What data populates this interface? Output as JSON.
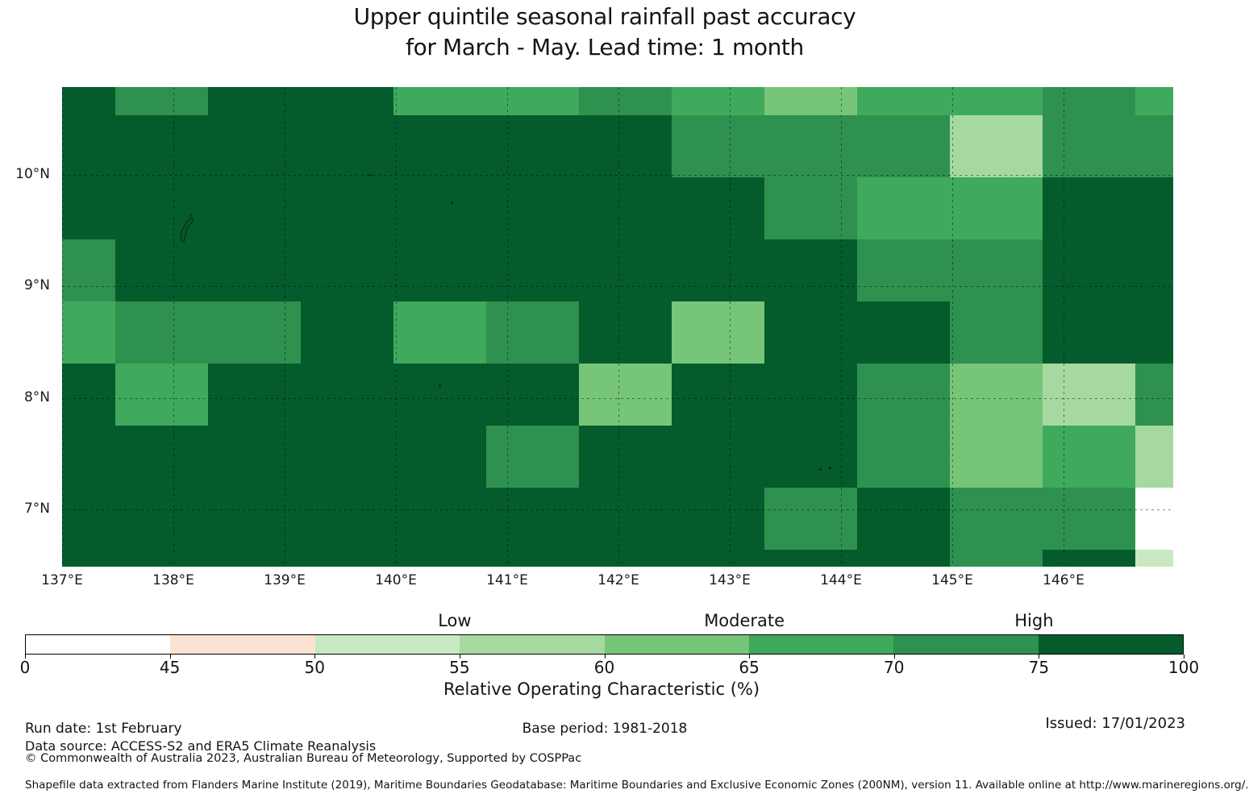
{
  "title": {
    "line1": "Upper quintile seasonal rainfall past accuracy",
    "line2": "for March - May. Lead time: 1 month"
  },
  "chart_data": {
    "type": "heatmap",
    "variable": "Relative Operating Characteristic (%)",
    "season": "March - May",
    "lead_time": "1 month",
    "x_tick_labels": [
      "137°E",
      "138°E",
      "139°E",
      "140°E",
      "141°E",
      "142°E",
      "143°E",
      "144°E",
      "145°E",
      "146°E"
    ],
    "y_tick_labels": [
      "10°N",
      "9°N",
      "8°N",
      "7°N"
    ],
    "lon_ticks": [
      137,
      138,
      139,
      140,
      141,
      142,
      143,
      144,
      145,
      146
    ],
    "lat_ticks": [
      10,
      9,
      8,
      7
    ],
    "lon_range": [
      137.0,
      146.99
    ],
    "lat_range": [
      6.486,
      10.788
    ],
    "grid_on": true,
    "lon_edges": [
      137.0,
      137.478,
      138.312,
      139.145,
      139.978,
      140.812,
      141.645,
      142.478,
      143.312,
      144.145,
      144.978,
      145.812,
      146.645,
      146.99
    ],
    "lat_edges": [
      10.788,
      10.535,
      9.978,
      9.421,
      8.864,
      8.307,
      7.751,
      7.194,
      6.637,
      6.486
    ],
    "bins": [
      {
        "range": "0-45",
        "label": "0 to 45 %",
        "color": "#ffffff"
      },
      {
        "range": "45-50",
        "label": "45 to 50 %",
        "color": "#fbe2d5"
      },
      {
        "range": "50-55",
        "label": "50 to 55 %",
        "color": "#c9e9c2"
      },
      {
        "range": "55-60",
        "label": "55 to 60 %",
        "color": "#a6d99f"
      },
      {
        "range": "60-65",
        "label": "60 to 65 %",
        "color": "#77c578"
      },
      {
        "range": "65-70",
        "label": "65 to 70 %",
        "color": "#3fa95c"
      },
      {
        "range": "70-75",
        "label": "70 to 75 %",
        "color": "#2e9150"
      },
      {
        "range": "75-100",
        "label": "75 to 100 %",
        "color": "#045c2c"
      }
    ],
    "values_bin_index": [
      [
        7,
        6,
        7,
        7,
        5,
        5,
        6,
        5,
        4,
        5,
        5,
        6,
        5
      ],
      [
        7,
        7,
        7,
        7,
        7,
        7,
        7,
        6,
        6,
        6,
        3,
        6,
        6
      ],
      [
        7,
        7,
        7,
        7,
        7,
        7,
        7,
        7,
        6,
        5,
        5,
        7,
        7
      ],
      [
        6,
        7,
        7,
        7,
        7,
        7,
        7,
        7,
        7,
        6,
        6,
        7,
        7
      ],
      [
        5,
        6,
        6,
        7,
        5,
        6,
        7,
        4,
        7,
        7,
        6,
        7,
        7
      ],
      [
        7,
        5,
        7,
        7,
        7,
        7,
        4,
        7,
        7,
        6,
        4,
        3,
        6
      ],
      [
        7,
        7,
        7,
        7,
        7,
        6,
        7,
        7,
        7,
        6,
        4,
        5,
        3
      ],
      [
        7,
        7,
        7,
        7,
        7,
        7,
        7,
        7,
        6,
        7,
        6,
        6,
        0
      ],
      [
        7,
        7,
        7,
        7,
        7,
        7,
        7,
        7,
        7,
        7,
        6,
        7,
        2
      ]
    ],
    "islands": [
      {
        "name": "Yap",
        "lon": 138.13,
        "lat": 9.52,
        "kind": "outline"
      },
      {
        "name": "islet-1",
        "lon": 139.77,
        "lat": 10.0,
        "kind": "dot"
      },
      {
        "name": "islet-2",
        "lon": 140.5,
        "lat": 9.754,
        "kind": "dot"
      },
      {
        "name": "islet-3",
        "lon": 140.39,
        "lat": 8.113,
        "kind": "dot"
      },
      {
        "name": "islet-4",
        "lon": 143.81,
        "lat": 7.361,
        "kind": "dot"
      },
      {
        "name": "islet-5",
        "lon": 143.9,
        "lat": 7.375,
        "kind": "dot"
      }
    ]
  },
  "colorbar": {
    "tick_labels": [
      "0",
      "45",
      "50",
      "55",
      "60",
      "65",
      "70",
      "75",
      "100"
    ],
    "tick_values": [
      0,
      45,
      50,
      55,
      60,
      65,
      70,
      75,
      100
    ],
    "category_labels": [
      {
        "label": "Low",
        "at_value": 55
      },
      {
        "label": "Moderate",
        "at_value": 65
      },
      {
        "label": "High",
        "at_value": 75
      }
    ],
    "title": "Relative Operating Characteristic (%)"
  },
  "footer": {
    "run_date": "Run date: 1st February",
    "base_period": "Base period: 1981-2018",
    "issued": "Issued: 17/01/2023",
    "data_source": "Data source: ACCESS-S2 and ERA5 Climate Reanalysis",
    "copyright": "© Commonwealth of Australia 2023, Australian Bureau of Meteorology, Supported by COSPPac",
    "shapefile_note": "Shapefile data extracted from Flanders Marine Institute (2019), Maritime Boundaries Geodatabase: Maritime Boundaries and Exclusive Economic Zones (200NM), version 11. Available online at http://www.marineregions.org/."
  }
}
